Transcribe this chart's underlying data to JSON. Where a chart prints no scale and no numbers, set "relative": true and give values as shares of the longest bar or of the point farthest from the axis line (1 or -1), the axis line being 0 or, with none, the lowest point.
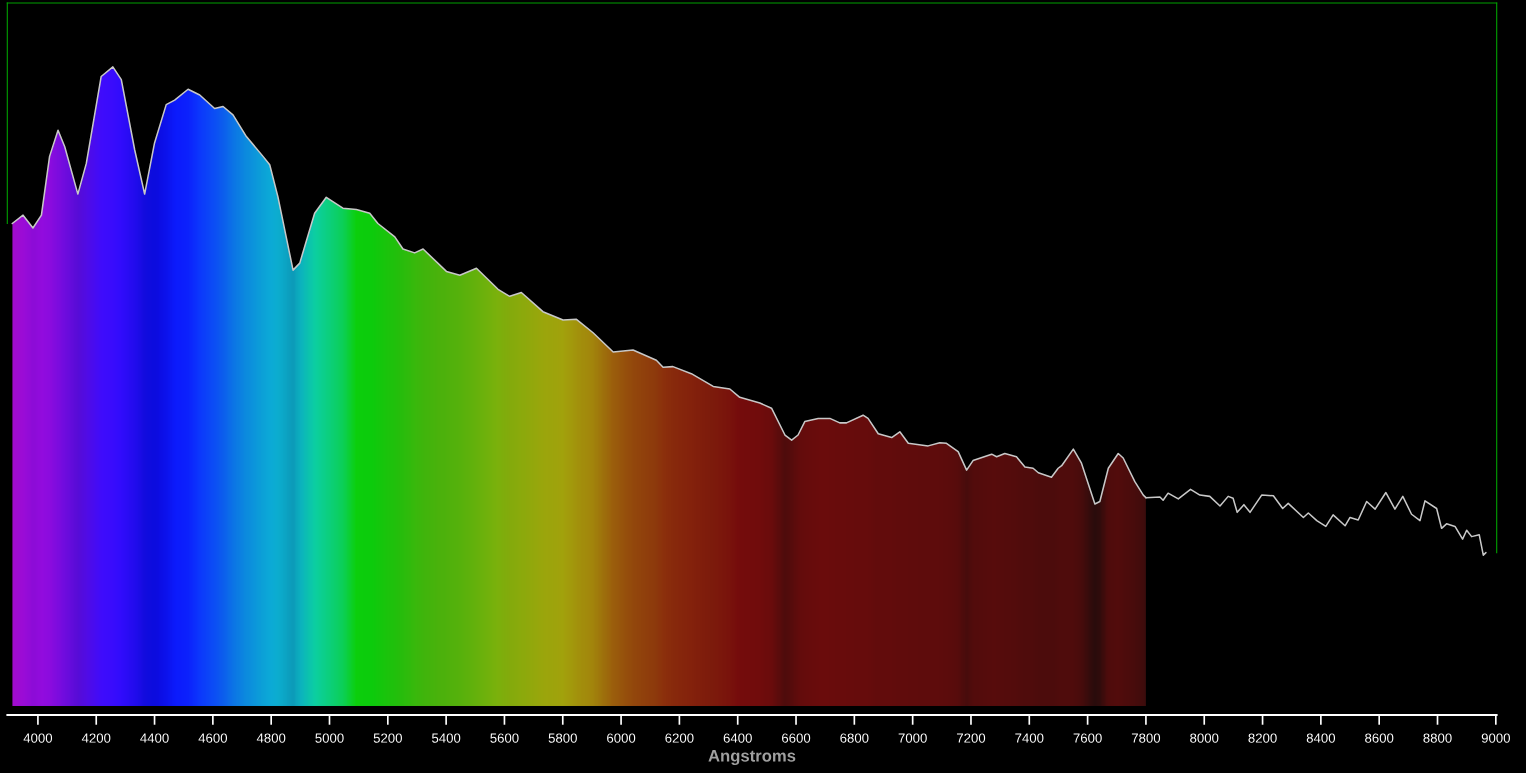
{
  "chart_data": {
    "type": "area",
    "relative": true,
    "xlabel": "Angstroms",
    "xlim": [
      3895,
      9003
    ],
    "xticks": [
      4000,
      4200,
      4400,
      4600,
      4800,
      5000,
      5200,
      5400,
      5600,
      5800,
      6000,
      6200,
      6400,
      6600,
      6800,
      7000,
      7200,
      7400,
      7600,
      7800,
      8000,
      8200,
      8400,
      8600,
      8800,
      9000
    ],
    "series": [
      {
        "color": "#c8c8c8",
        "x": [
          3912,
          3949,
          3983,
          4012,
          4040,
          4069,
          4092,
          4137,
          4166,
          4217,
          4257,
          4286,
          4332,
          4366,
          4400,
          4440,
          4469,
          4515,
          4555,
          4606,
          4635,
          4669,
          4715,
          4772,
          4795,
          4823,
          4875,
          4898,
          4949,
          4989,
          5046,
          5092,
          5138,
          5166,
          5224,
          5252,
          5292,
          5321,
          5401,
          5447,
          5504,
          5578,
          5618,
          5658,
          5732,
          5801,
          5847,
          5904,
          5973,
          6041,
          6121,
          6144,
          6178,
          6241,
          6316,
          6373,
          6407,
          6476,
          6516,
          6562,
          6585,
          6607,
          6630,
          6676,
          6716,
          6750,
          6773,
          6830,
          6847,
          6882,
          6928,
          6956,
          6985,
          7053,
          7093,
          7116,
          7156,
          7185,
          7207,
          7271,
          7288,
          7316,
          7356,
          7385,
          7413,
          7431,
          7476,
          7499,
          7511,
          7551,
          7579,
          7625,
          7642,
          7671,
          7705,
          7722,
          7762,
          7791,
          7800
        ],
        "values": [
          0.755,
          0.768,
          0.748,
          0.768,
          0.86,
          0.901,
          0.875,
          0.801,
          0.849,
          0.985,
          1.0,
          0.98,
          0.87,
          0.801,
          0.881,
          0.941,
          0.948,
          0.965,
          0.956,
          0.935,
          0.938,
          0.925,
          0.891,
          0.86,
          0.847,
          0.797,
          0.682,
          0.693,
          0.771,
          0.796,
          0.779,
          0.777,
          0.771,
          0.755,
          0.734,
          0.715,
          0.709,
          0.715,
          0.68,
          0.674,
          0.685,
          0.652,
          0.641,
          0.647,
          0.617,
          0.604,
          0.605,
          0.584,
          0.554,
          0.557,
          0.541,
          0.53,
          0.531,
          0.52,
          0.5,
          0.496,
          0.483,
          0.474,
          0.466,
          0.424,
          0.416,
          0.424,
          0.445,
          0.45,
          0.45,
          0.443,
          0.443,
          0.455,
          0.45,
          0.426,
          0.42,
          0.429,
          0.411,
          0.407,
          0.412,
          0.411,
          0.398,
          0.369,
          0.384,
          0.394,
          0.39,
          0.395,
          0.39,
          0.374,
          0.372,
          0.365,
          0.358,
          0.372,
          0.376,
          0.402,
          0.38,
          0.316,
          0.32,
          0.372,
          0.395,
          0.388,
          0.351,
          0.33,
          0.326
        ],
        "colors": [
          "#a000d0",
          "#9800d8",
          "#8a00d8",
          "#9000e0",
          "#8800e0",
          "#7800e0",
          "#6a00e0",
          "#5000d8",
          "#4a00e8",
          "#3800ff",
          "#3000ff",
          "#2800ff",
          "#1800f0",
          "#0800e0",
          "#0000e0",
          "#0008f0",
          "#0010ff",
          "#0018ff",
          "#0030ff",
          "#0048f8",
          "#0058f0",
          "#0070e8",
          "#0088e0",
          "#00a0d8",
          "#00a8d8",
          "#00acd0",
          "#0098b8",
          "#00b0c0",
          "#00d0a0",
          "#00d080",
          "#00d050",
          "#00d000",
          "#00cc00",
          "#08c800",
          "#18c000",
          "#20bc00",
          "#30b800",
          "#38b400",
          "#48b000",
          "#50b000",
          "#60b000",
          "#78b000",
          "#80a800",
          "#88a800",
          "#98a400",
          "#a0a000",
          "#a09000",
          "#a08000",
          "#985800",
          "#904000",
          "#8a3000",
          "#882800",
          "#842000",
          "#801800",
          "#781000",
          "#740800",
          "#700000",
          "#6c0000",
          "#640000",
          "#480000",
          "#500000",
          "#5c0000",
          "#600000",
          "#640000",
          "#640000",
          "#620000",
          "#620000",
          "#600000",
          "#600000",
          "#5c0000",
          "#5c0000",
          "#5a0000",
          "#5a0000",
          "#580000",
          "#580000",
          "#560000",
          "#500000",
          "#400000",
          "#4c0000",
          "#500000",
          "#500000",
          "#4e0000",
          "#4c0000",
          "#480000",
          "#480000",
          "#460000",
          "#440000",
          "#480000",
          "#480000",
          "#480000",
          "#400000",
          "#200000",
          "#280000",
          "#480000",
          "#4c0000",
          "#480000",
          "#400000",
          "#380000",
          "#300000"
        ]
      },
      {
        "type": "line",
        "color": "#c8c8c8",
        "x": [
          7800,
          7848,
          7859,
          7876,
          7911,
          7953,
          7985,
          8019,
          8054,
          8082,
          8099,
          8113,
          8136,
          8157,
          8197,
          8237,
          8269,
          8288,
          8340,
          8357,
          8386,
          8417,
          8442,
          8483,
          8500,
          8528,
          8557,
          8586,
          8623,
          8654,
          8681,
          8711,
          8740,
          8757,
          8797,
          8814,
          8831,
          8860,
          8886,
          8900,
          8917,
          8943,
          8957,
          8966
        ],
        "values": [
          0.326,
          0.327,
          0.322,
          0.333,
          0.324,
          0.339,
          0.33,
          0.328,
          0.313,
          0.328,
          0.325,
          0.303,
          0.315,
          0.303,
          0.33,
          0.329,
          0.309,
          0.317,
          0.295,
          0.302,
          0.29,
          0.281,
          0.299,
          0.282,
          0.295,
          0.291,
          0.32,
          0.308,
          0.334,
          0.308,
          0.328,
          0.3,
          0.29,
          0.321,
          0.309,
          0.278,
          0.285,
          0.281,
          0.261,
          0.275,
          0.265,
          0.268,
          0.236,
          0.24
        ]
      }
    ]
  }
}
